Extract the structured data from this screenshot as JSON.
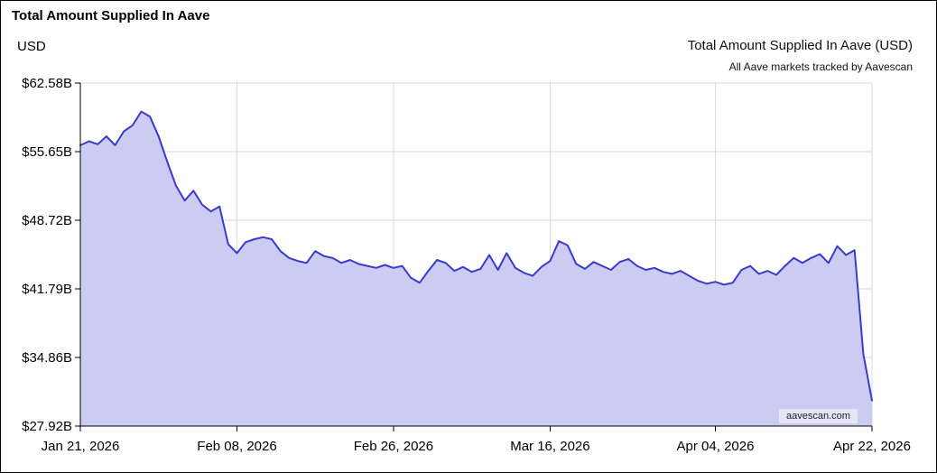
{
  "page": {
    "title": "Total Amount Supplied In Aave",
    "y_axis_unit": "USD",
    "chart_title": "Total Amount Supplied In Aave (USD)",
    "chart_subtitle": "All Aave markets tracked by Aavescan",
    "watermark": "aavescan.com"
  },
  "chart_data": {
    "type": "area",
    "title": "Total Amount Supplied In Aave (USD)",
    "subtitle": "All Aave markets tracked by Aavescan",
    "xlabel": "",
    "ylabel": "USD",
    "unit": "USD billions",
    "ylim": [
      27.92,
      62.58
    ],
    "grid": true,
    "legend": false,
    "line_color": "#3a3acb",
    "fill_color": "#ccccf2",
    "y_ticks": [
      "$62.58B",
      "$55.65B",
      "$48.72B",
      "$41.79B",
      "$34.86B",
      "$27.92B"
    ],
    "y_tick_values": [
      62.58,
      55.65,
      48.72,
      41.79,
      34.86,
      27.92
    ],
    "x_ticks": [
      "Jan 21, 2026",
      "Feb 08, 2026",
      "Feb 26, 2026",
      "Mar 16, 2026",
      "Apr 04, 2026",
      "Apr 22, 2026"
    ],
    "x_tick_day_index": [
      0,
      18,
      36,
      54,
      73,
      91
    ],
    "x_start": "2026-01-21",
    "x_end": "2026-04-22",
    "interval": "daily",
    "x": [
      "2026-01-21",
      "2026-01-22",
      "2026-01-23",
      "2026-01-24",
      "2026-01-25",
      "2026-01-26",
      "2026-01-27",
      "2026-01-28",
      "2026-01-29",
      "2026-01-30",
      "2026-01-31",
      "2026-02-01",
      "2026-02-02",
      "2026-02-03",
      "2026-02-04",
      "2026-02-05",
      "2026-02-06",
      "2026-02-07",
      "2026-02-08",
      "2026-02-09",
      "2026-02-10",
      "2026-02-11",
      "2026-02-12",
      "2026-02-13",
      "2026-02-14",
      "2026-02-15",
      "2026-02-16",
      "2026-02-17",
      "2026-02-18",
      "2026-02-19",
      "2026-02-20",
      "2026-02-21",
      "2026-02-22",
      "2026-02-23",
      "2026-02-24",
      "2026-02-25",
      "2026-02-26",
      "2026-02-27",
      "2026-02-28",
      "2026-03-01",
      "2026-03-02",
      "2026-03-03",
      "2026-03-04",
      "2026-03-05",
      "2026-03-06",
      "2026-03-07",
      "2026-03-08",
      "2026-03-09",
      "2026-03-10",
      "2026-03-11",
      "2026-03-12",
      "2026-03-13",
      "2026-03-14",
      "2026-03-15",
      "2026-03-16",
      "2026-03-17",
      "2026-03-18",
      "2026-03-19",
      "2026-03-20",
      "2026-03-21",
      "2026-03-22",
      "2026-03-23",
      "2026-03-24",
      "2026-03-25",
      "2026-03-26",
      "2026-03-27",
      "2026-03-28",
      "2026-03-29",
      "2026-03-30",
      "2026-03-31",
      "2026-04-01",
      "2026-04-02",
      "2026-04-03",
      "2026-04-04",
      "2026-04-05",
      "2026-04-06",
      "2026-04-07",
      "2026-04-08",
      "2026-04-09",
      "2026-04-10",
      "2026-04-11",
      "2026-04-12",
      "2026-04-13",
      "2026-04-14",
      "2026-04-15",
      "2026-04-16",
      "2026-04-17",
      "2026-04-18",
      "2026-04-19",
      "2026-04-20",
      "2026-04-21",
      "2026-04-22"
    ],
    "values": [
      56.3,
      56.7,
      56.4,
      57.2,
      56.3,
      57.7,
      58.3,
      59.7,
      59.2,
      57.2,
      54.6,
      52.2,
      50.7,
      51.7,
      50.3,
      49.6,
      50.1,
      46.3,
      45.4,
      46.5,
      46.8,
      47.0,
      46.8,
      45.6,
      44.9,
      44.6,
      44.4,
      45.6,
      45.1,
      44.9,
      44.4,
      44.7,
      44.3,
      44.1,
      43.9,
      44.2,
      43.9,
      44.1,
      42.9,
      42.4,
      43.6,
      44.7,
      44.4,
      43.6,
      44.0,
      43.5,
      43.8,
      45.2,
      43.7,
      45.4,
      43.9,
      43.4,
      43.1,
      44.0,
      44.6,
      46.6,
      46.2,
      44.3,
      43.8,
      44.5,
      44.1,
      43.7,
      44.5,
      44.8,
      44.1,
      43.7,
      43.9,
      43.5,
      43.3,
      43.6,
      43.1,
      42.6,
      42.3,
      42.5,
      42.2,
      42.4,
      43.7,
      44.1,
      43.3,
      43.6,
      43.2,
      44.1,
      44.9,
      44.4,
      44.9,
      45.3,
      44.4,
      46.1,
      45.2,
      45.7,
      35.2,
      30.5
    ],
    "watermark": "aavescan.com"
  }
}
